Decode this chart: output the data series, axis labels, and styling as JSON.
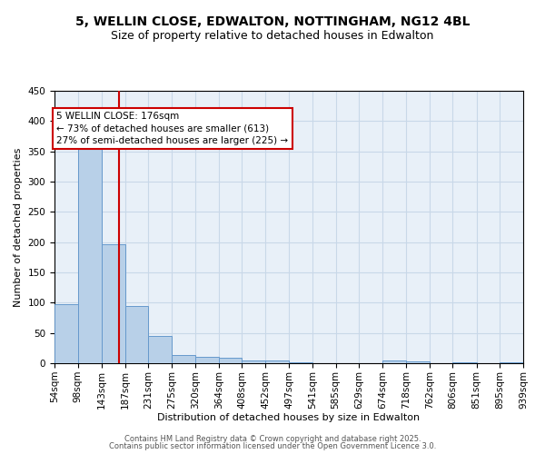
{
  "title_line1": "5, WELLIN CLOSE, EDWALTON, NOTTINGHAM, NG12 4BL",
  "title_line2": "Size of property relative to detached houses in Edwalton",
  "xlabel": "Distribution of detached houses by size in Edwalton",
  "ylabel": "Number of detached properties",
  "bin_labels": [
    "54sqm",
    "98sqm",
    "143sqm",
    "187sqm",
    "231sqm",
    "275sqm",
    "320sqm",
    "364sqm",
    "408sqm",
    "452sqm",
    "497sqm",
    "541sqm",
    "585sqm",
    "629sqm",
    "674sqm",
    "718sqm",
    "762sqm",
    "806sqm",
    "851sqm",
    "895sqm",
    "939sqm"
  ],
  "bar_heights": [
    98,
    363,
    197,
    94,
    45,
    14,
    10,
    9,
    5,
    5,
    2,
    0,
    0,
    0,
    4,
    3,
    0,
    2,
    0,
    2
  ],
  "bar_color": "#b8d0e8",
  "bar_edgecolor": "#6699cc",
  "vline_x": 176,
  "vline_color": "#cc0000",
  "annotation_text": "5 WELLIN CLOSE: 176sqm\n← 73% of detached houses are smaller (613)\n27% of semi-detached houses are larger (225) →",
  "annotation_box_color": "#ffffff",
  "annotation_box_edgecolor": "#cc0000",
  "annotation_fontsize": 7.5,
  "grid_color": "#c8d8e8",
  "bg_color": "#e8f0f8",
  "ylim": [
    0,
    450
  ],
  "yticks": [
    0,
    50,
    100,
    150,
    200,
    250,
    300,
    350,
    400,
    450
  ],
  "bin_edges_sqm": [
    54,
    98,
    143,
    187,
    231,
    275,
    320,
    364,
    408,
    452,
    497,
    541,
    585,
    629,
    674,
    718,
    762,
    806,
    851,
    895,
    939
  ],
  "footer_text1": "Contains HM Land Registry data © Crown copyright and database right 2025.",
  "footer_text2": "Contains public sector information licensed under the Open Government Licence 3.0.",
  "title_fontsize": 10,
  "subtitle_fontsize": 9,
  "axis_label_fontsize": 8,
  "tick_fontsize": 7.5,
  "footer_fontsize": 6
}
